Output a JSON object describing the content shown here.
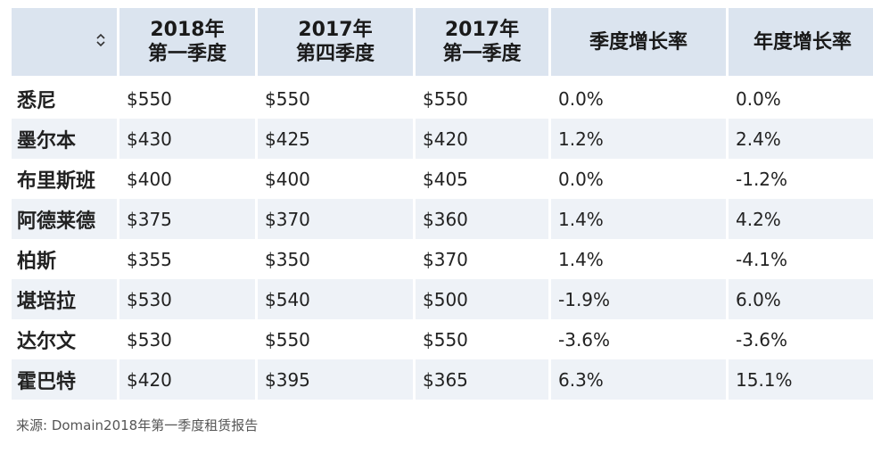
{
  "chart_data": {
    "type": "table",
    "columns": [
      "2018年\n第一季度",
      "2017年\n第四季度",
      "2017年\n第一季度",
      "季度增长率",
      "年度增长率"
    ],
    "header_lines": [
      [
        "2018年",
        "第一季度"
      ],
      [
        "2017年",
        "第四季度"
      ],
      [
        "2017年",
        "第一季度"
      ],
      [
        "季度增长率"
      ],
      [
        "年度增长率"
      ]
    ],
    "rows": [
      {
        "city": "悉尼",
        "values": [
          "$550",
          "$550",
          "$550",
          "0.0%",
          "0.0%"
        ]
      },
      {
        "city": "墨尔本",
        "values": [
          "$430",
          "$425",
          "$420",
          "1.2%",
          "2.4%"
        ]
      },
      {
        "city": "布里斯班",
        "values": [
          "$400",
          "$400",
          "$405",
          "0.0%",
          "-1.2%"
        ]
      },
      {
        "city": "阿德莱德",
        "values": [
          "$375",
          "$370",
          "$360",
          "1.4%",
          "4.2%"
        ]
      },
      {
        "city": "柏斯",
        "values": [
          "$355",
          "$350",
          "$370",
          "1.4%",
          "-4.1%"
        ]
      },
      {
        "city": "堪培拉",
        "values": [
          "$530",
          "$540",
          "$500",
          "-1.9%",
          "6.0%"
        ]
      },
      {
        "city": "达尔文",
        "values": [
          "$530",
          "$550",
          "$550",
          "-3.6%",
          "-3.6%"
        ]
      },
      {
        "city": "霍巴特",
        "values": [
          "$420",
          "$395",
          "$365",
          "6.3%",
          "15.1%"
        ]
      }
    ]
  },
  "header_background": "#dbe4ef",
  "stripe_background": "#eef2f7",
  "sort_icon": "sort-updown-icon",
  "source": "来源: Domain2018年第一季度租赁报告"
}
